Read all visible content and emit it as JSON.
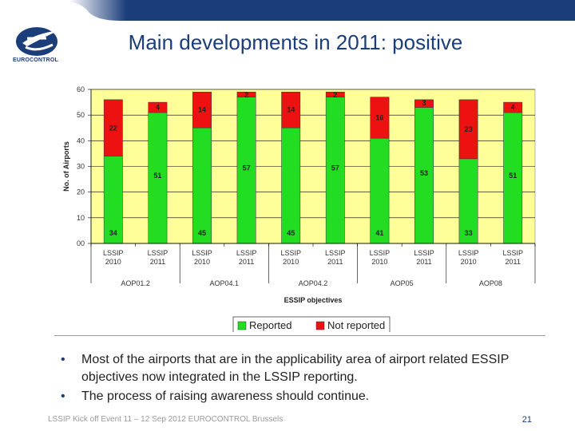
{
  "header": {
    "title": "Main developments in 2011: positive",
    "logo_text": "EUROCONTROL",
    "brand_color": "#1b3d7a"
  },
  "chart_data": {
    "type": "bar",
    "stacked": true,
    "categories": [
      "LSSIP 2010",
      "LSSIP 2011",
      "LSSIP 2010",
      "LSSIP 2011",
      "LSSIP 2010",
      "LSSIP 2011",
      "LSSIP 2010",
      "LSSIP 2011",
      "LSSIP 2010",
      "LSSIP 2011"
    ],
    "category_lines": [
      [
        "LSSIP",
        "2010"
      ],
      [
        "LSSIP",
        "2011"
      ],
      [
        "LSSIP",
        "2010"
      ],
      [
        "LSSIP",
        "2011"
      ],
      [
        "LSSIP",
        "2010"
      ],
      [
        "LSSIP",
        "2011"
      ],
      [
        "LSSIP",
        "2010"
      ],
      [
        "LSSIP",
        "2011"
      ],
      [
        "LSSIP",
        "2010"
      ],
      [
        "LSSIP",
        "2011"
      ]
    ],
    "groups": [
      "AOP01.2",
      "AOP04.1",
      "AOP04.2",
      "AOP05",
      "AOP08"
    ],
    "series": [
      {
        "name": "Reported",
        "color": "#22dd22",
        "values": [
          34,
          51,
          45,
          57,
          45,
          57,
          41,
          53,
          33,
          51
        ]
      },
      {
        "name": "Not reported",
        "color": "#ee1111",
        "values": [
          22,
          4,
          14,
          2,
          14,
          2,
          16,
          3,
          23,
          4
        ]
      }
    ],
    "xlabel": "ESSIP objectives",
    "ylabel": "No. of Airports",
    "ylim": [
      0,
      60
    ],
    "yticks": [
      0,
      10,
      20,
      30,
      40,
      50,
      60
    ],
    "grid": true,
    "plot_background": "#ffff99",
    "legend_position": "bottom-right"
  },
  "bullets": [
    "Most of the airports that are in the applicability area of airport related ESSIP objectives now integrated in the LSSIP reporting.",
    "The process of raising awareness should continue."
  ],
  "footer": {
    "text": "LSSIP Kick off Event 11 – 12 Sep 2012 EUROCONTROL Brussels",
    "page_number": "21"
  }
}
